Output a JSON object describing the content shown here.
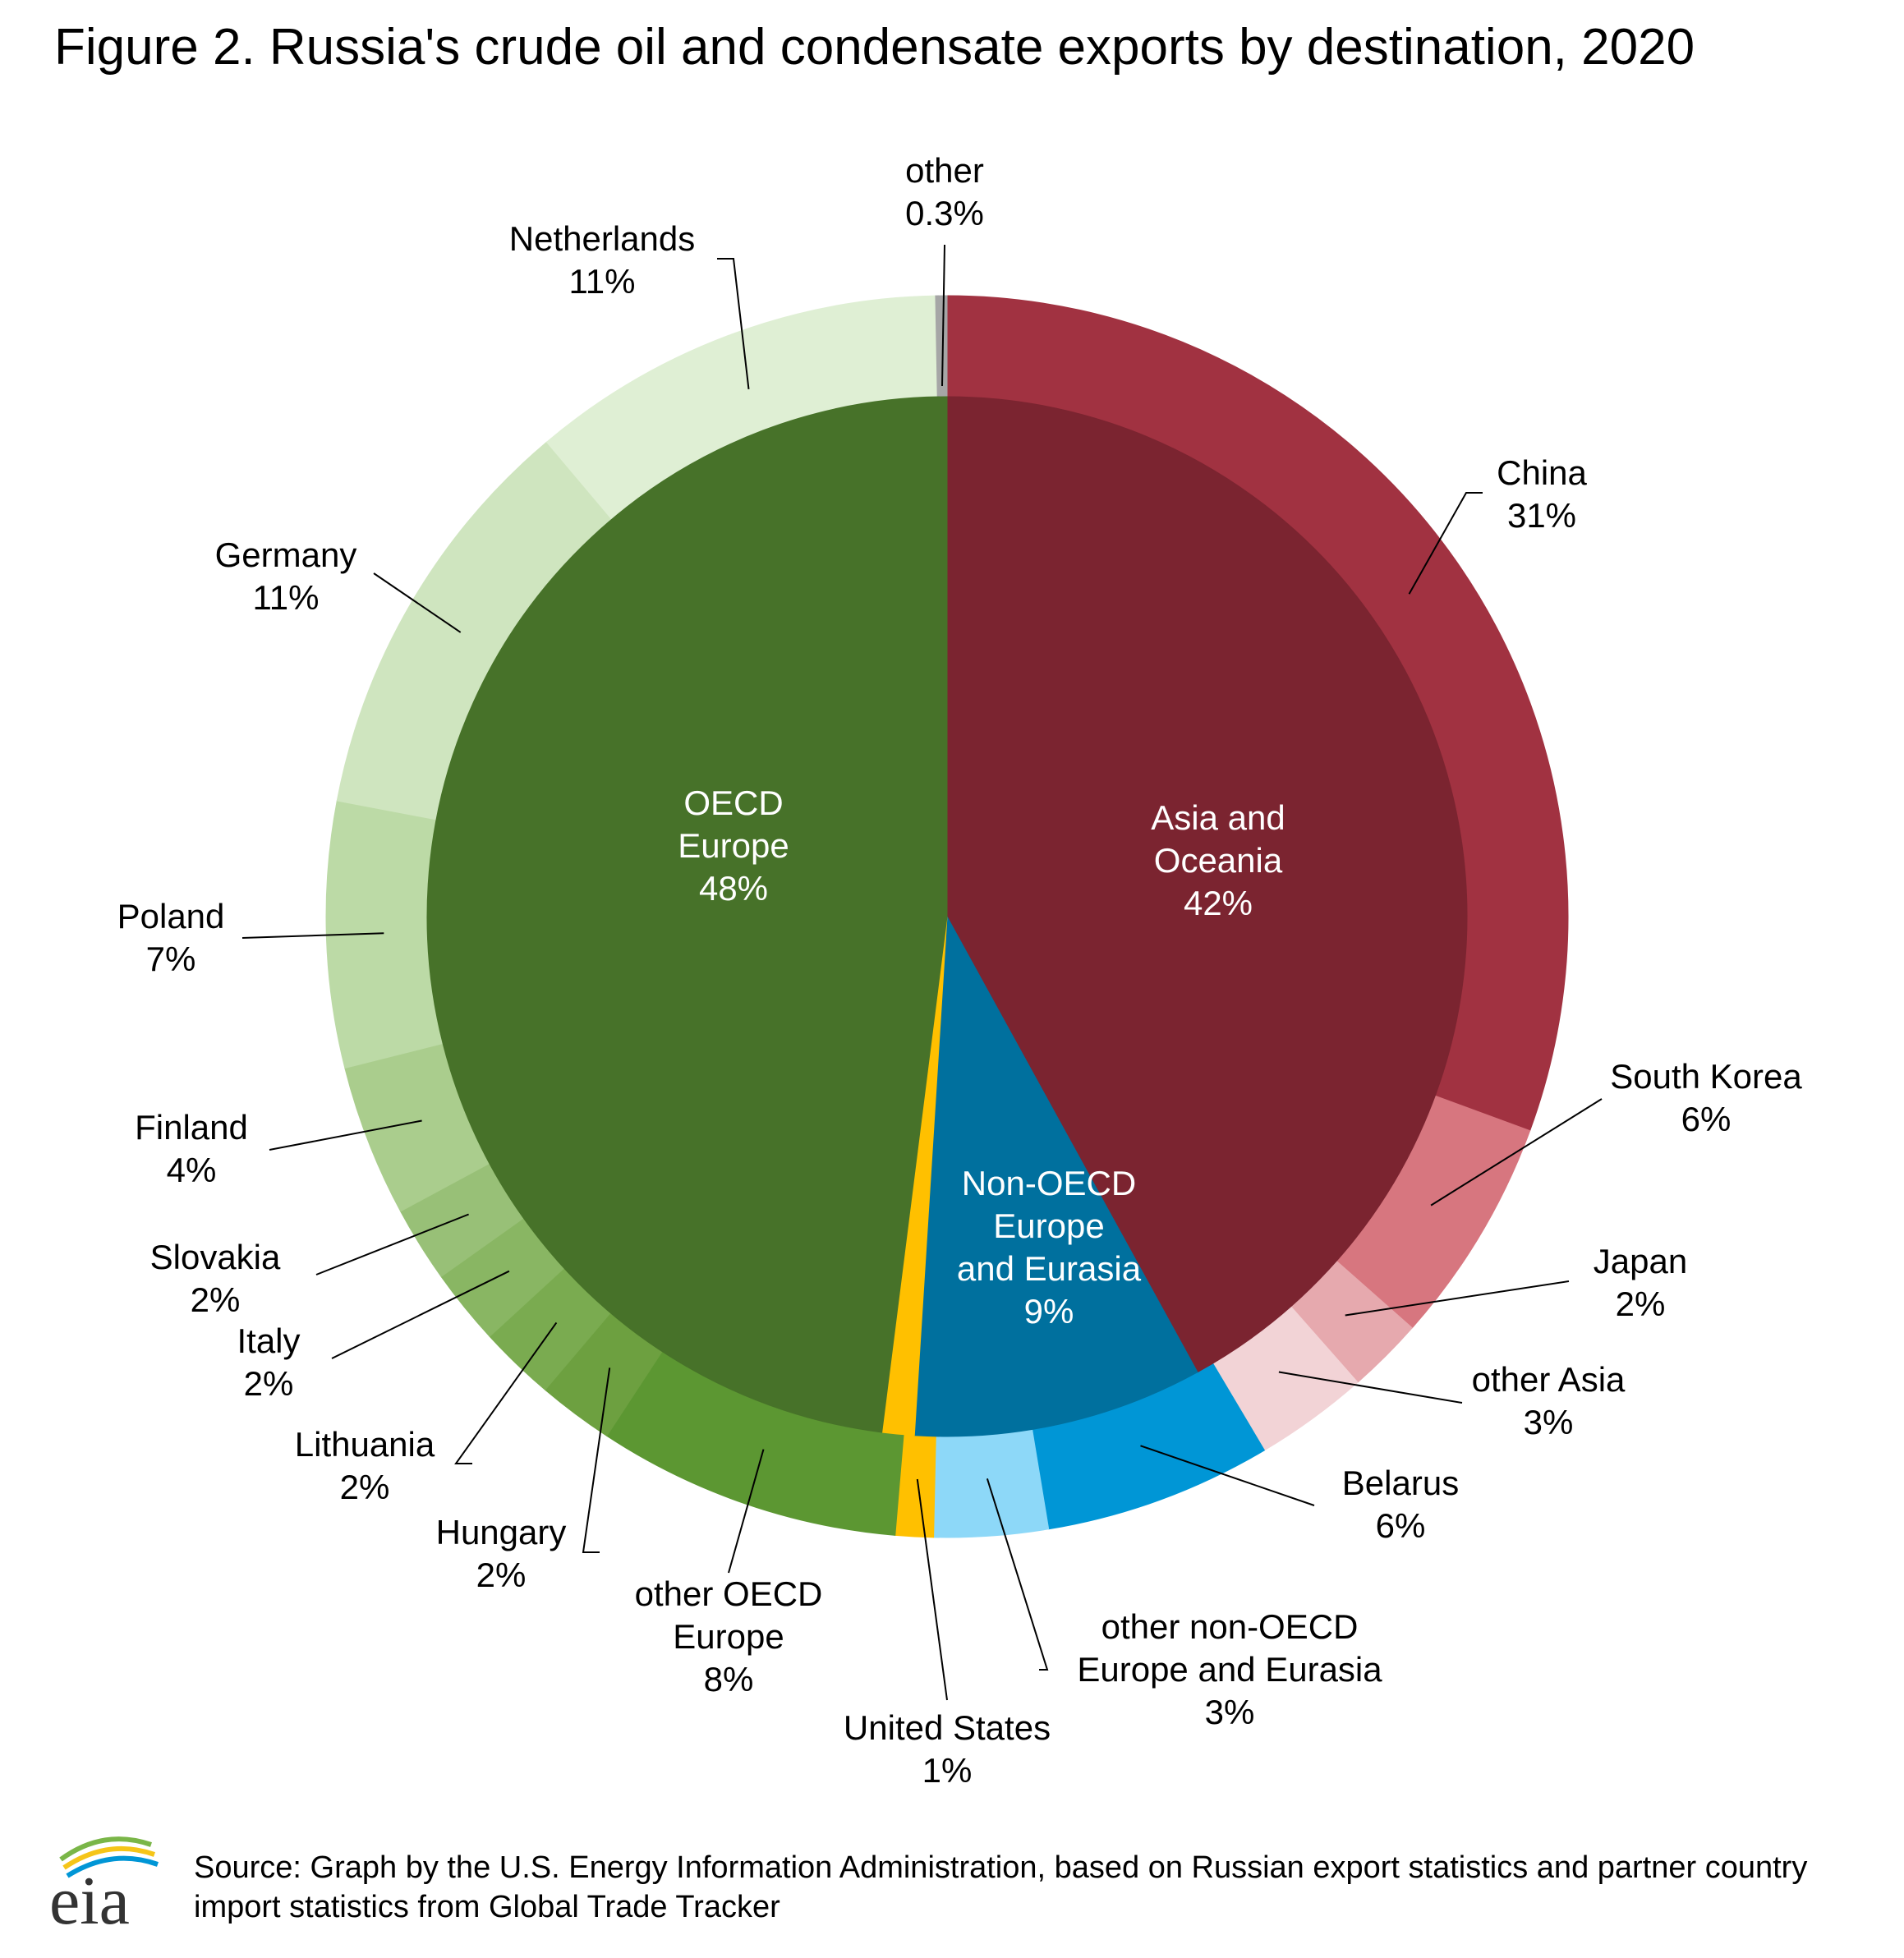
{
  "title": "Figure 2. Russia's crude oil and condensate exports by destination, 2020",
  "source": "Source: Graph by the U.S. Energy Information Administration, based on Russian export statistics and partner country import statistics from Global Trade Tracker",
  "logo_text": "eia",
  "chart_data": {
    "type": "pie",
    "variant": "nested-donut",
    "unit": "%",
    "inner": [
      {
        "name": "Asia and Oceania",
        "lines": [
          "Asia and",
          "Oceania"
        ],
        "value": 42,
        "label": "42%",
        "color": "#7b2430"
      },
      {
        "name": "Non-OECD Europe and Eurasia",
        "lines": [
          "Non-OECD",
          "Europe",
          "and Eurasia"
        ],
        "value": 9,
        "label": "9%",
        "color": "#00709e"
      },
      {
        "name": "United States",
        "lines": [],
        "value": 1,
        "label": "",
        "color": "#ffc000"
      },
      {
        "name": "OECD Europe",
        "lines": [
          "OECD",
          "Europe"
        ],
        "value": 48,
        "label": "48%",
        "color": "#477229"
      }
    ],
    "outer": [
      {
        "name": "China",
        "label": "31%",
        "value": 31,
        "color": "#a13241"
      },
      {
        "name": "South Korea",
        "label": "6%",
        "value": 6,
        "color": "#d7767f"
      },
      {
        "name": "Japan",
        "label": "2%",
        "value": 2,
        "color": "#e6a9ae"
      },
      {
        "name": "other Asia",
        "label": "3%",
        "value": 3,
        "color": "#f2d3d6"
      },
      {
        "name": "Belarus",
        "label": "6%",
        "value": 6,
        "color": "#0096d6"
      },
      {
        "name": "other non-OECD Europe and Eurasia",
        "label": "3%",
        "value": 3,
        "color": "#8dd8f8"
      },
      {
        "name": "United States",
        "label": "1%",
        "value": 1,
        "color": "#ffc000"
      },
      {
        "name": "other OECD Europe",
        "label": "8%",
        "value": 8,
        "color": "#5c9732"
      },
      {
        "name": "Hungary",
        "label": "2%",
        "value": 2,
        "color": "#6da040"
      },
      {
        "name": "Lithuania",
        "label": "2%",
        "value": 2,
        "color": "#7aab50"
      },
      {
        "name": "Italy",
        "label": "2%",
        "value": 2,
        "color": "#89b663"
      },
      {
        "name": "Slovakia",
        "label": "2%",
        "value": 2,
        "color": "#98c077"
      },
      {
        "name": "Finland",
        "label": "4%",
        "value": 4,
        "color": "#aacd8d"
      },
      {
        "name": "Poland",
        "label": "7%",
        "value": 7,
        "color": "#bcdaa6"
      },
      {
        "name": "Germany",
        "label": "11%",
        "value": 11,
        "color": "#cfe5bf"
      },
      {
        "name": "Netherlands",
        "label": "11%",
        "value": 11,
        "color": "#dfefd4"
      },
      {
        "name": "other",
        "label": "0.3%",
        "value": 0.3,
        "color": "#a6a6a6"
      }
    ]
  }
}
